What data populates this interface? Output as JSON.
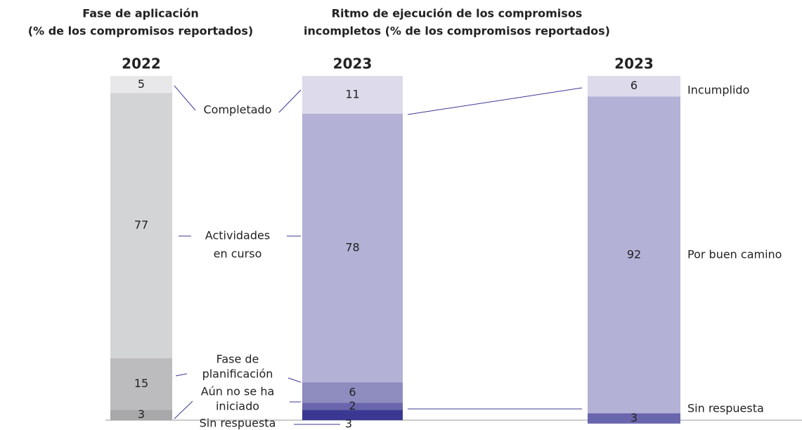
{
  "chart_data": {
    "type": "stacked-bar",
    "titles": [
      {
        "lines": [
          "Fase de aplicación",
          "(% de los compromisos reportados)"
        ]
      },
      {
        "lines": [
          "Ritmo de ejecución de los compromisos",
          "incompletos (% de los compromisos reportados)"
        ]
      }
    ],
    "phase_categories": [
      [
        "Completado"
      ],
      [
        "Actividades",
        "en curso"
      ],
      [
        "Fase de",
        "planificación"
      ],
      [
        "Aún no se ha",
        "iniciado"
      ],
      [
        "Sin respuesta"
      ]
    ],
    "pace_categories": [
      "Incumplido",
      "Por buen camino",
      "Sin respuesta"
    ],
    "bars": [
      {
        "label": "2022",
        "values": [
          5,
          77,
          15,
          3
        ],
        "colors": [
          "#e8e8ea",
          "#d3d4d6",
          "#bcbcbe",
          "#a8a8aa"
        ],
        "text_colors": [
          "#222",
          "#222",
          "#222",
          "#222"
        ]
      },
      {
        "label": "2023",
        "values": [
          11,
          78,
          6,
          2,
          3
        ],
        "colors": [
          "#dcdaeb",
          "#b3b1d5",
          "#8f8cc0",
          "#6a66ad",
          "#3b3893"
        ],
        "text_colors": [
          "#222",
          "#222",
          "#fff",
          "#fff",
          "#222"
        ]
      },
      {
        "label": "2023",
        "values": [
          6,
          92,
          3
        ],
        "colors": [
          "#dcdaeb",
          "#b3b1d5",
          "#6a66ad"
        ],
        "text_colors": [
          "#222",
          "#222",
          "#fff"
        ]
      }
    ],
    "ylim": [
      0,
      100
    ]
  }
}
